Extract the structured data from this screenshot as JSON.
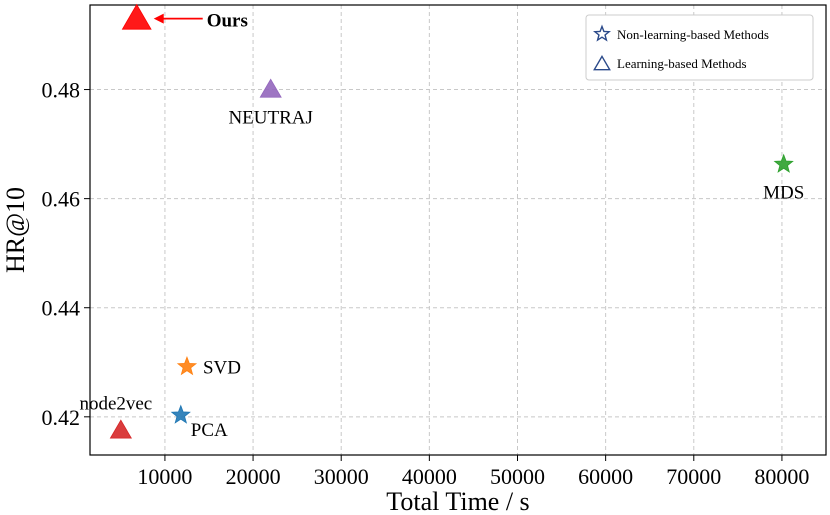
{
  "chart_data": {
    "type": "scatter",
    "title": "",
    "xlabel": "Total Time / s",
    "ylabel": "HR@10",
    "xlim": [
      1500,
      85000
    ],
    "ylim": [
      0.413,
      0.4955
    ],
    "xticks": [
      10000,
      20000,
      30000,
      40000,
      50000,
      60000,
      70000,
      80000
    ],
    "yticks": [
      0.42,
      0.44,
      0.46,
      0.48
    ],
    "ytick_labels": [
      "0.42",
      "0.44",
      "0.46",
      "0.48"
    ],
    "grid": true,
    "legend_position": "top-right",
    "legend": [
      {
        "label": "Non-learning-based Methods",
        "marker": "star"
      },
      {
        "label": "Learning-based Methods",
        "marker": "triangle"
      }
    ],
    "points": [
      {
        "name": "Ours",
        "x": 6800,
        "y": 0.493,
        "marker": "triangle",
        "color": "#ff0000",
        "size": "large",
        "label_pos": "right-arrow"
      },
      {
        "name": "NEUTRAJ",
        "x": 22000,
        "y": 0.48,
        "marker": "triangle",
        "color": "#9467bd",
        "label_pos": "below"
      },
      {
        "name": "MDS",
        "x": 80200,
        "y": 0.4663,
        "marker": "star",
        "color": "#2ca02c",
        "label_pos": "below"
      },
      {
        "name": "SVD",
        "x": 12500,
        "y": 0.4292,
        "marker": "star",
        "color": "#ff7f0e",
        "label_pos": "right"
      },
      {
        "name": "PCA",
        "x": 11800,
        "y": 0.4203,
        "marker": "star",
        "color": "#1f77b4",
        "label_pos": "below-right"
      },
      {
        "name": "node2vec",
        "x": 5000,
        "y": 0.4175,
        "marker": "triangle",
        "color": "#d62728",
        "label_pos": "above"
      }
    ]
  }
}
